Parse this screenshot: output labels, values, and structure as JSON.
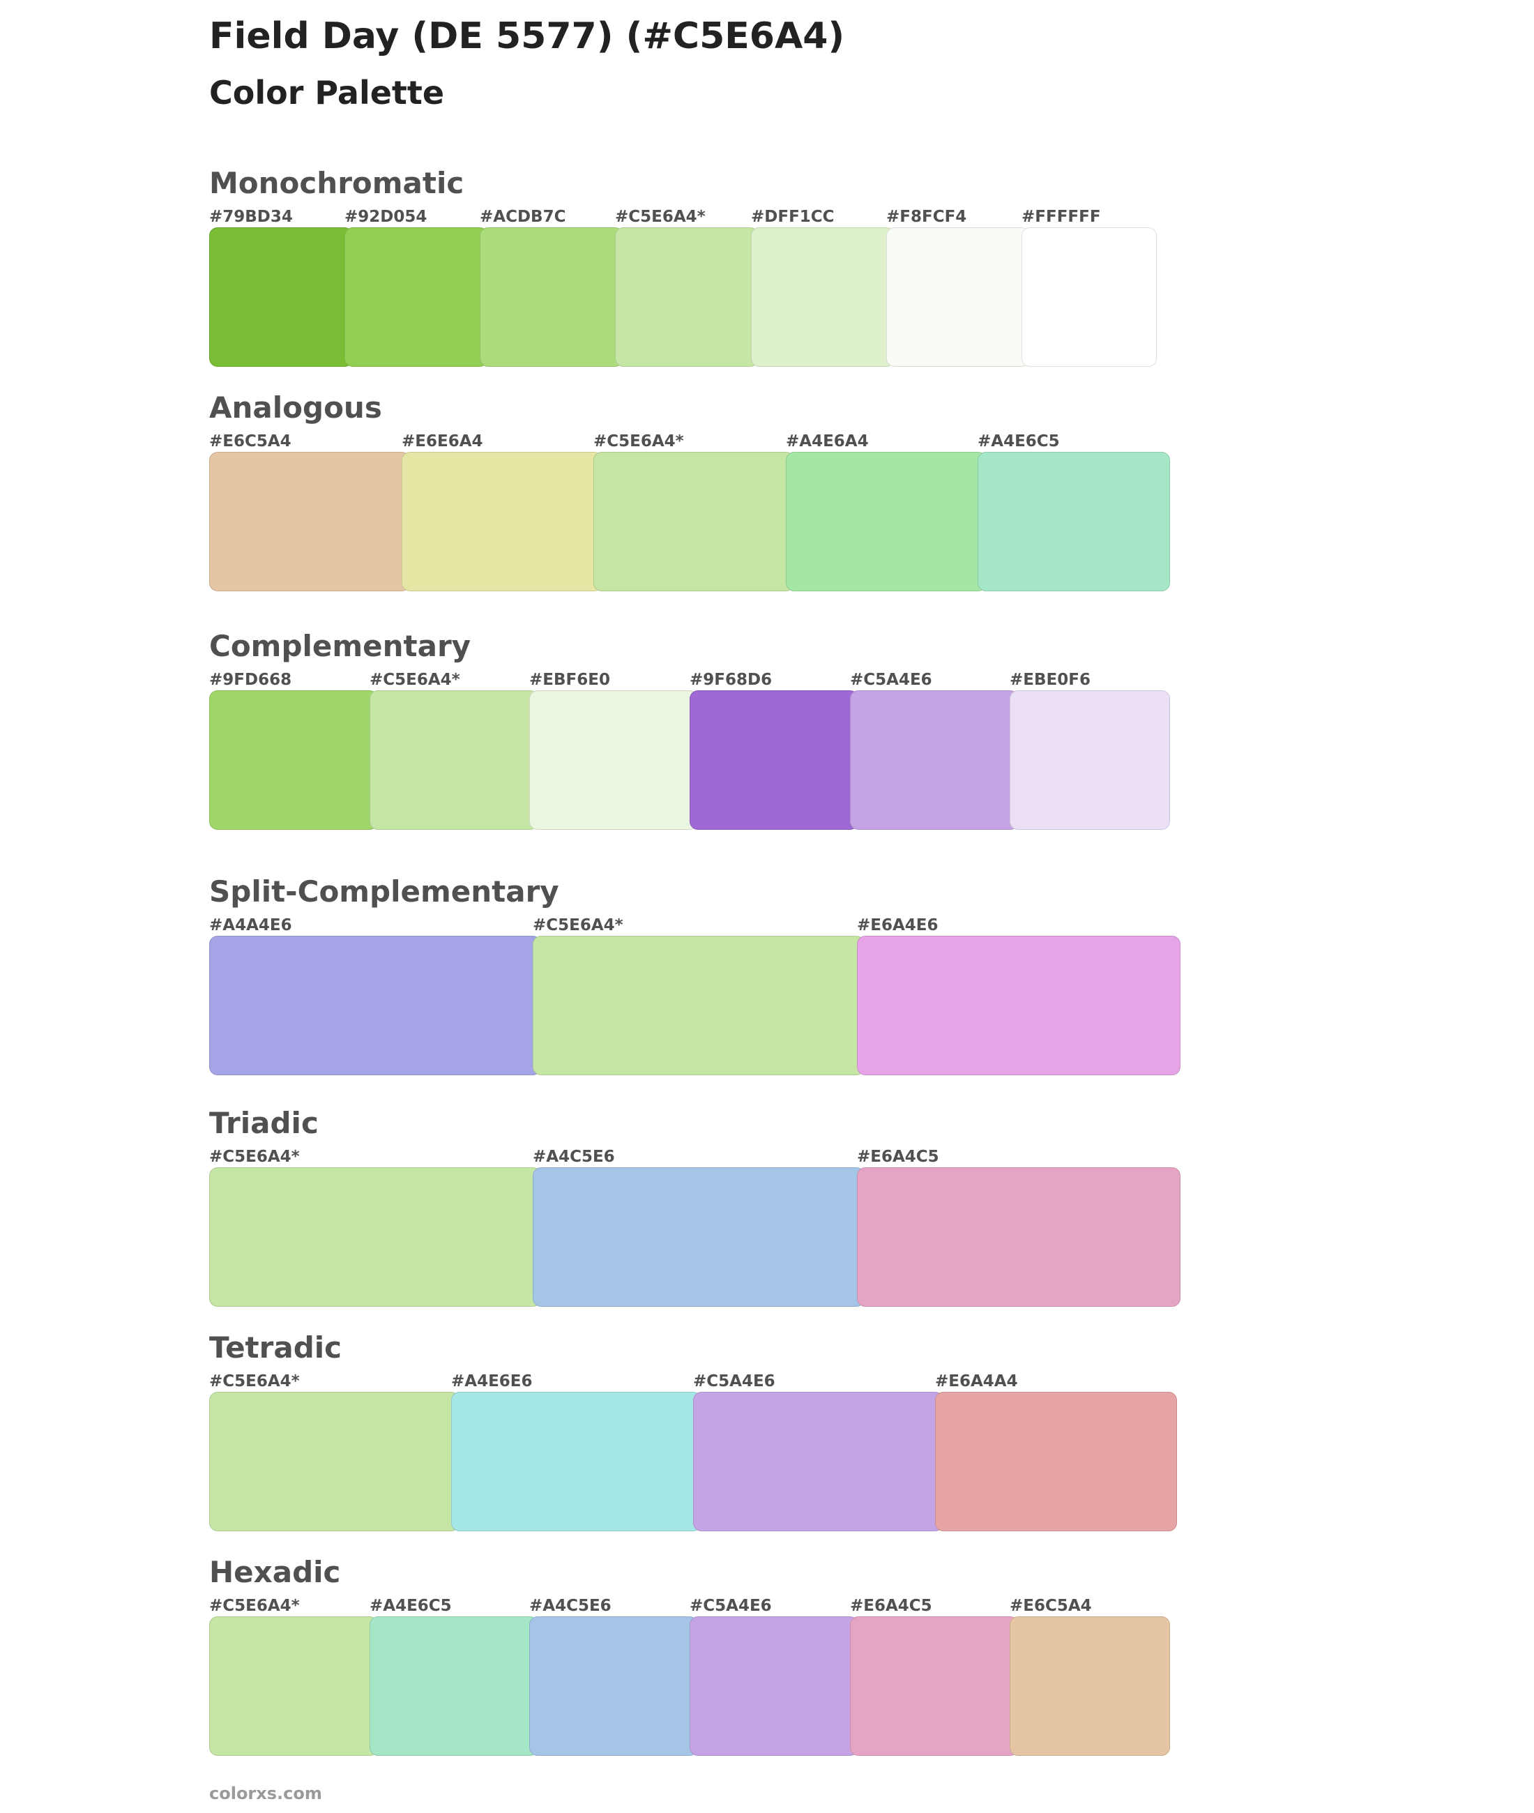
{
  "header": {
    "title": "Field Day (DE 5577) (#C5E6A4)",
    "subtitle": "Color Palette"
  },
  "sections": [
    {
      "name": "Monochromatic",
      "swatches": [
        {
          "label": "#79BD34",
          "color": "#79BD34"
        },
        {
          "label": "#92D054",
          "color": "#92D054"
        },
        {
          "label": "#ACDB7C",
          "color": "#ACDB7C"
        },
        {
          "label": "#C5E6A4*",
          "color": "#C5E6A4"
        },
        {
          "label": "#DFF1CC",
          "color": "#DFF1CC"
        },
        {
          "label": "#F8FCF4",
          "color": "#F8FCF4"
        },
        {
          "label": "#FFFFFF",
          "color": "#FFFFFF"
        }
      ]
    },
    {
      "name": "Analogous",
      "swatches": [
        {
          "label": "#E6C5A4",
          "color": "#E6C5A4"
        },
        {
          "label": "#E6E6A4",
          "color": "#E6E6A4"
        },
        {
          "label": "#C5E6A4*",
          "color": "#C5E6A4"
        },
        {
          "label": "#A4E6A4",
          "color": "#A4E6A4"
        },
        {
          "label": "#A4E6C5",
          "color": "#A4E6C5"
        }
      ]
    },
    {
      "name": "Complementary",
      "swatches": [
        {
          "label": "#9FD668",
          "color": "#9FD668"
        },
        {
          "label": "#C5E6A4*",
          "color": "#C5E6A4"
        },
        {
          "label": "#EBF6E0",
          "color": "#EBF6E0"
        },
        {
          "label": "#9F68D6",
          "color": "#9F68D6"
        },
        {
          "label": "#C5A4E6",
          "color": "#C5A4E6"
        },
        {
          "label": "#EBE0F6",
          "color": "#EBE0F6"
        }
      ]
    },
    {
      "name": "Split-Complementary",
      "swatches": [
        {
          "label": "#A4A4E6",
          "color": "#A4A4E6"
        },
        {
          "label": "#C5E6A4*",
          "color": "#C5E6A4"
        },
        {
          "label": "#E6A4E6",
          "color": "#E6A4E6"
        }
      ]
    },
    {
      "name": "Triadic",
      "swatches": [
        {
          "label": "#C5E6A4*",
          "color": "#C5E6A4"
        },
        {
          "label": "#A4C5E6",
          "color": "#A4C5E6"
        },
        {
          "label": "#E6A4C5",
          "color": "#E6A4C5"
        }
      ]
    },
    {
      "name": "Tetradic",
      "swatches": [
        {
          "label": "#C5E6A4*",
          "color": "#C5E6A4"
        },
        {
          "label": "#A4E6E6",
          "color": "#A4E6E6"
        },
        {
          "label": "#C5A4E6",
          "color": "#C5A4E6"
        },
        {
          "label": "#E6A4A4",
          "color": "#E6A4A4"
        }
      ]
    },
    {
      "name": "Hexadic",
      "swatches": [
        {
          "label": "#C5E6A4*",
          "color": "#C5E6A4"
        },
        {
          "label": "#A4E6C5",
          "color": "#A4E6C5"
        },
        {
          "label": "#A4C5E6",
          "color": "#A4C5E6"
        },
        {
          "label": "#C5A4E6",
          "color": "#C5A4E6"
        },
        {
          "label": "#E6A4C5",
          "color": "#E6A4C5"
        },
        {
          "label": "#E6C5A4",
          "color": "#E6C5A4"
        }
      ]
    }
  ],
  "footer": {
    "text": "colorxs.com"
  }
}
